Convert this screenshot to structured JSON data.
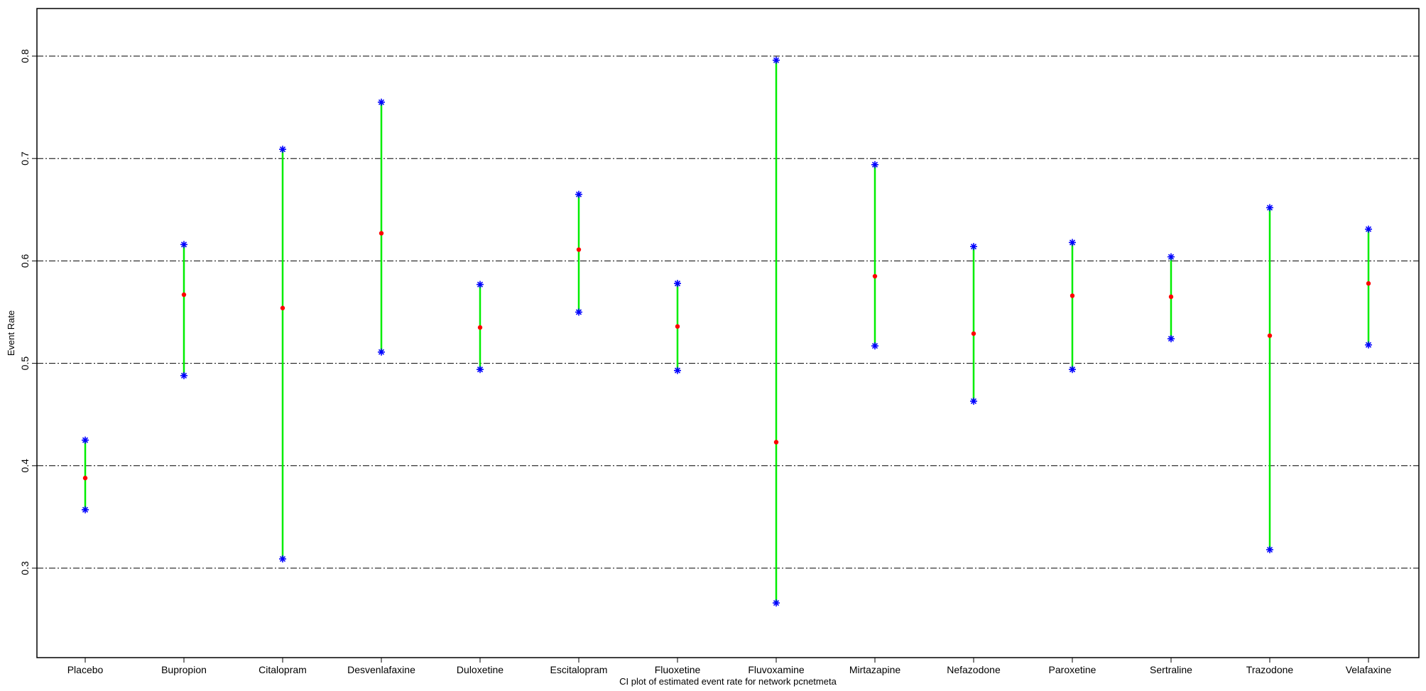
{
  "chart_data": {
    "type": "errorbar",
    "title": "",
    "xlabel": "CI plot of estimated event rate for network pcnetmeta",
    "ylabel": "Event Rate",
    "ylim": [
      0.22,
      0.85
    ],
    "yticks": [
      0.3,
      0.4,
      0.5,
      0.6,
      0.7,
      0.8
    ],
    "ytick_labels": [
      "0.3",
      "0.4",
      "0.5",
      "0.6",
      "0.7",
      "0.8"
    ],
    "grid": "horizontal dash-dot at y ticks",
    "categories": [
      "Placebo",
      "Bupropion",
      "Citalopram",
      "Desvenlafaxine",
      "Duloxetine",
      "Escitalopram",
      "Fluoxetine",
      "Fluvoxamine",
      "Mirtazapine",
      "Nefazodone",
      "Paroxetine",
      "Sertraline",
      "Trazodone",
      "Velafaxine"
    ],
    "estimate": [
      0.388,
      0.567,
      0.554,
      0.627,
      0.535,
      0.611,
      0.536,
      0.423,
      0.585,
      0.529,
      0.566,
      0.565,
      0.527,
      0.578
    ],
    "lower": [
      0.357,
      0.488,
      0.309,
      0.511,
      0.494,
      0.55,
      0.493,
      0.266,
      0.517,
      0.463,
      0.494,
      0.524,
      0.318,
      0.518
    ],
    "upper": [
      0.425,
      0.616,
      0.709,
      0.755,
      0.577,
      0.665,
      0.578,
      0.796,
      0.694,
      0.614,
      0.618,
      0.604,
      0.652,
      0.631
    ],
    "colors": {
      "interval": "#00ee00",
      "bounds": "#0000ff",
      "estimate": "#ff0000",
      "grid": "#000000"
    }
  }
}
